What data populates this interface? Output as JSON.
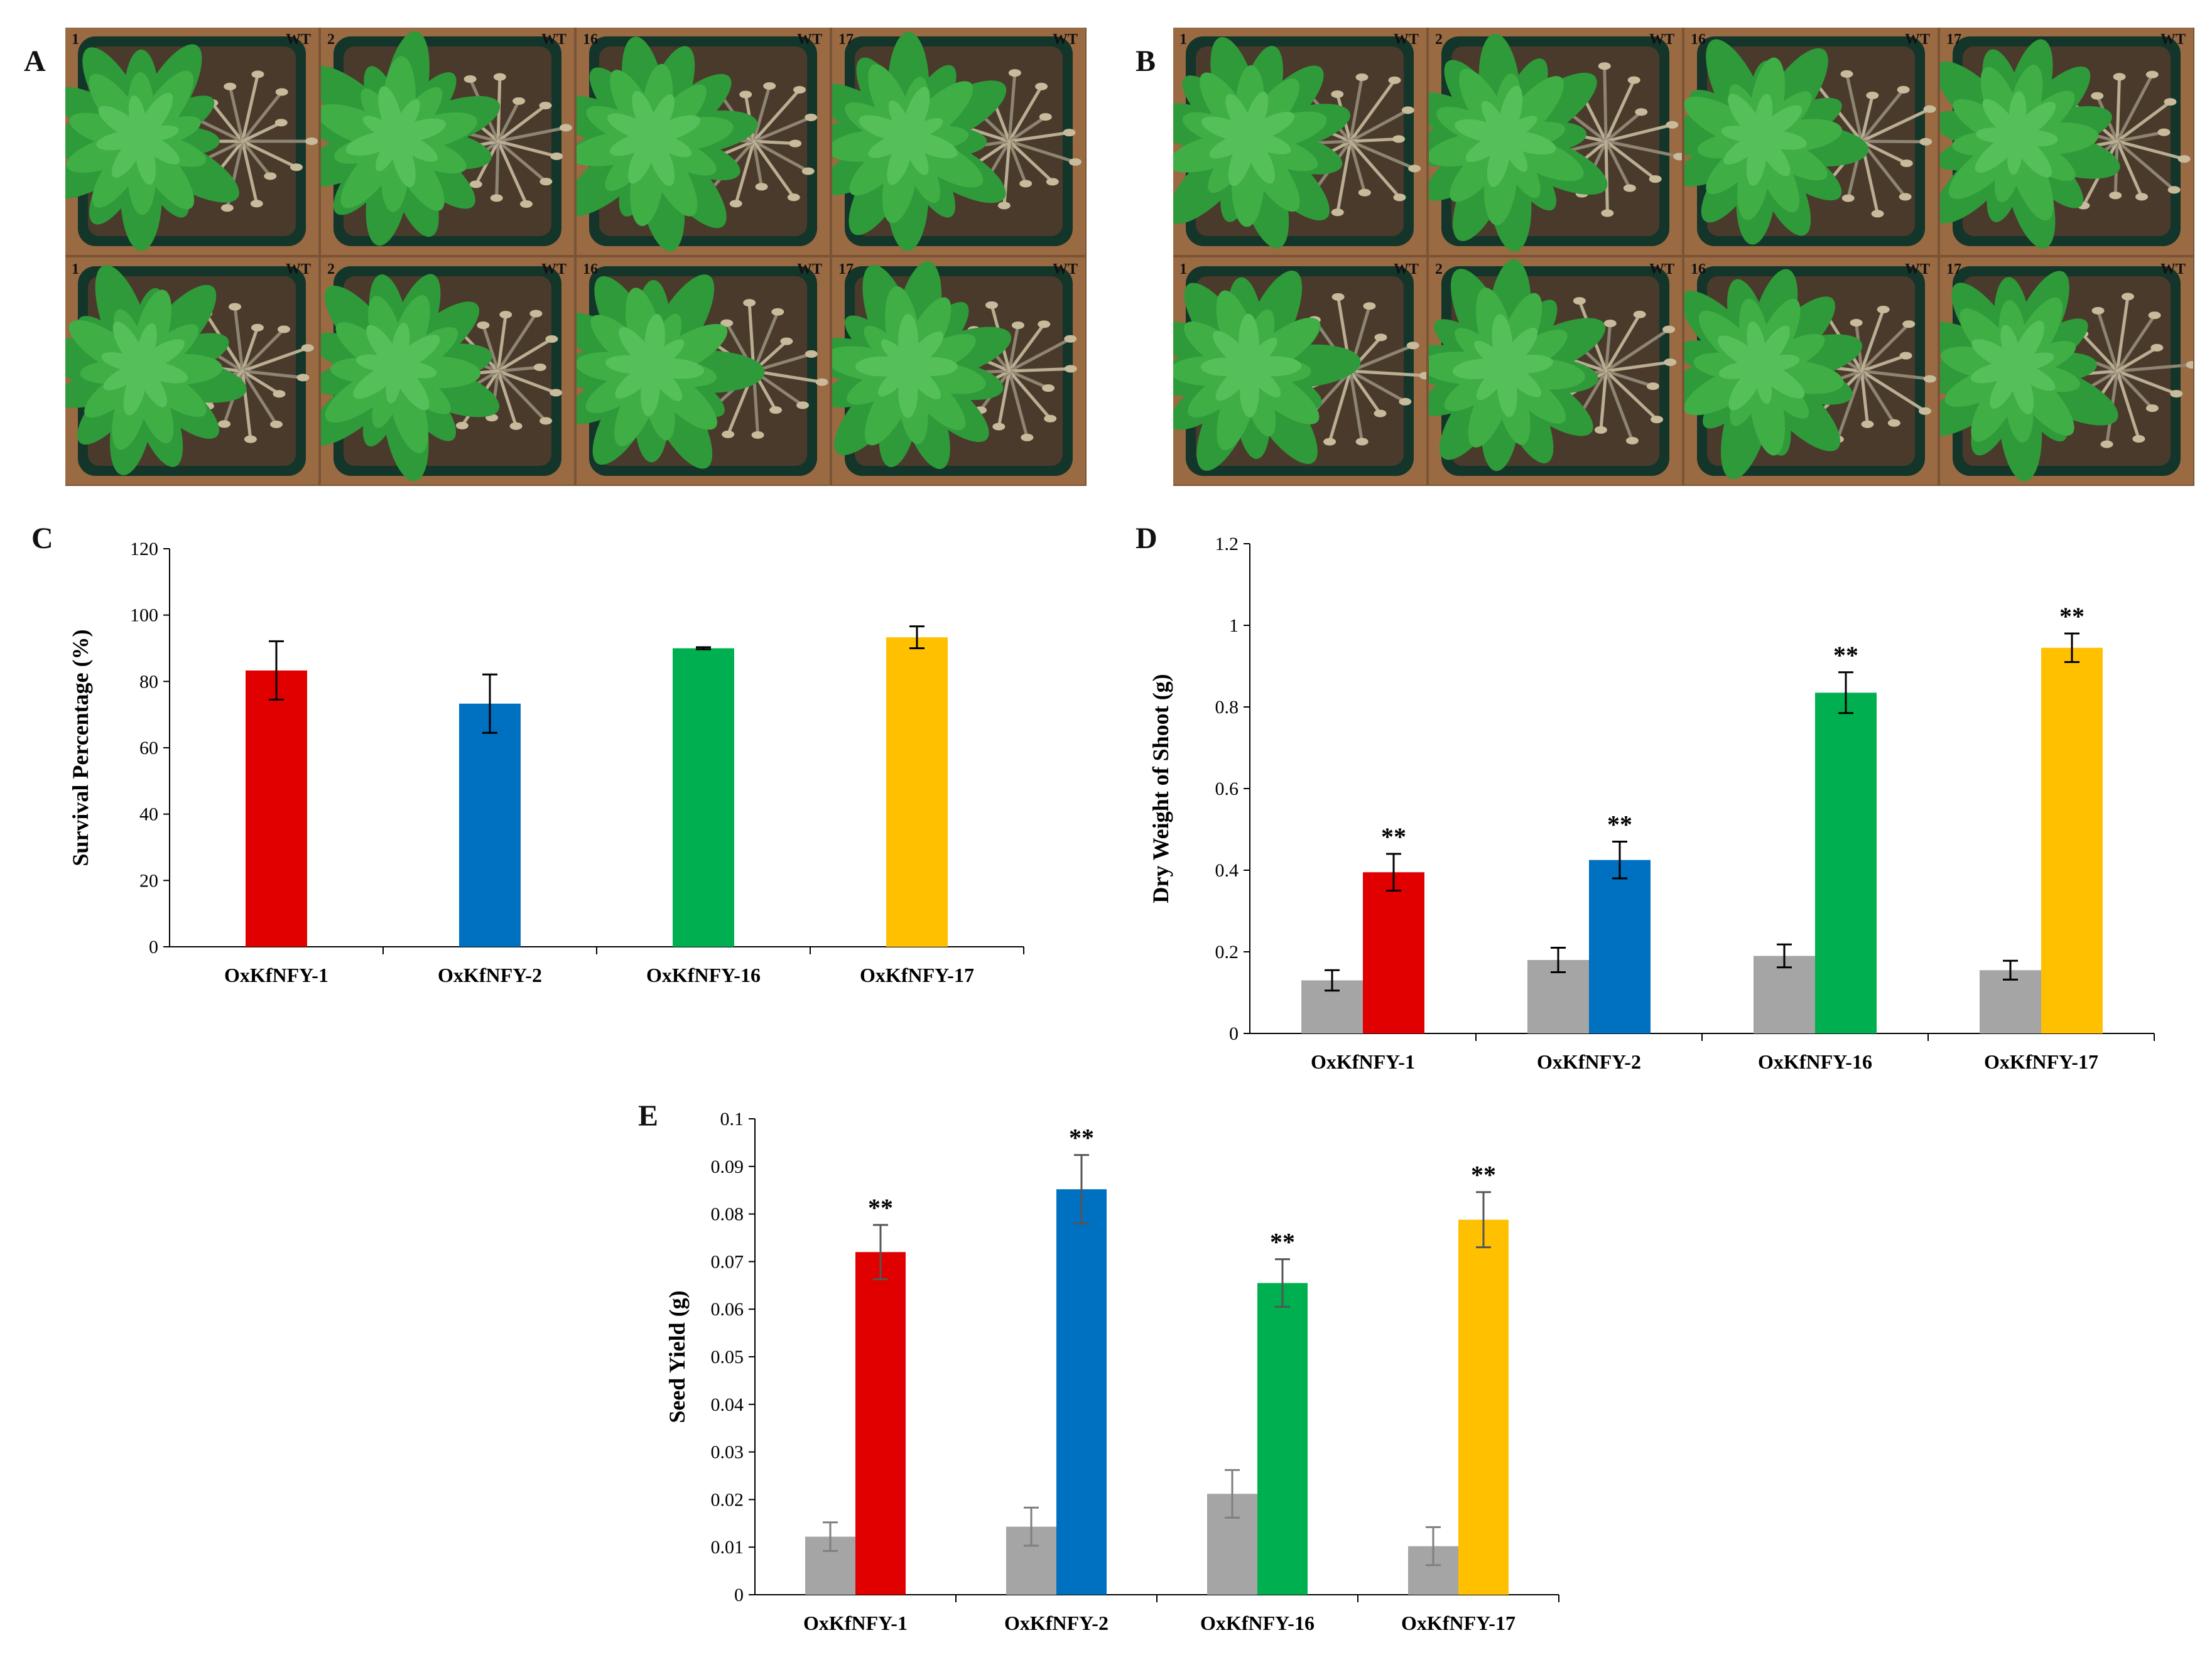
{
  "panels": {
    "A": "A",
    "B": "B",
    "C": "C",
    "D": "D",
    "E": "E"
  },
  "photo_grids": [
    {
      "id": "A",
      "cells": [
        {
          "line": "1",
          "wt": "WT"
        },
        {
          "line": "2",
          "wt": "WT"
        },
        {
          "line": "16",
          "wt": "WT"
        },
        {
          "line": "17",
          "wt": "WT"
        },
        {
          "line": "1",
          "wt": "WT"
        },
        {
          "line": "2",
          "wt": "WT"
        },
        {
          "line": "16",
          "wt": "WT"
        },
        {
          "line": "17",
          "wt": "WT"
        }
      ]
    },
    {
      "id": "B",
      "cells": [
        {
          "line": "1",
          "wt": "WT"
        },
        {
          "line": "2",
          "wt": "WT"
        },
        {
          "line": "16",
          "wt": "WT"
        },
        {
          "line": "17",
          "wt": "WT"
        },
        {
          "line": "1",
          "wt": "WT"
        },
        {
          "line": "2",
          "wt": "WT"
        },
        {
          "line": "16",
          "wt": "WT"
        },
        {
          "line": "17",
          "wt": "WT"
        }
      ]
    }
  ],
  "colors": {
    "wt_bar": "#a5a5a5",
    "line1": "#e00000",
    "line2": "#0070c0",
    "line16": "#00b050",
    "line17": "#ffc000"
  },
  "chart_data": [
    {
      "id": "C",
      "type": "bar",
      "categories": [
        "OxKfNFY-1",
        "OxKfNFY-2",
        "OxKfNFY-16",
        "OxKfNFY-17"
      ],
      "series": [
        {
          "name": "OxKfNFY",
          "values": [
            83.3,
            73.3,
            90.0,
            93.3
          ],
          "errors": [
            8.8,
            8.8,
            0.3,
            3.3
          ]
        }
      ],
      "significance": [
        "",
        "",
        "",
        ""
      ],
      "ylabel": "Survival Percentage (%)",
      "ylim": [
        0,
        120
      ],
      "yticks": [
        "0",
        "20",
        "40",
        "60",
        "80",
        "100",
        "120"
      ]
    },
    {
      "id": "D",
      "type": "bar",
      "categories": [
        "OxKfNFY-1",
        "OxKfNFY-2",
        "OxKfNFY-16",
        "OxKfNFY-17"
      ],
      "series": [
        {
          "name": "WT",
          "values": [
            0.13,
            0.18,
            0.19,
            0.155
          ],
          "errors": [
            0.025,
            0.03,
            0.028,
            0.023
          ]
        },
        {
          "name": "OxKfNFY",
          "values": [
            0.395,
            0.425,
            0.835,
            0.945
          ],
          "errors": [
            0.045,
            0.045,
            0.05,
            0.035
          ]
        }
      ],
      "significance": [
        "**",
        "**",
        "**",
        "**"
      ],
      "ylabel": "Dry Weight of Shoot (g)",
      "ylim": [
        0,
        1.2
      ],
      "yticks": [
        "0",
        "0.2",
        "0.4",
        "0.6",
        "0.8",
        "1",
        "1.2"
      ]
    },
    {
      "id": "E",
      "type": "bar",
      "categories": [
        "OxKfNFY-1",
        "OxKfNFY-2",
        "OxKfNFY-16",
        "OxKfNFY-17"
      ],
      "series": [
        {
          "name": "WT",
          "values": [
            0.0122,
            0.0143,
            0.0212,
            0.0102
          ],
          "errors": [
            0.003,
            0.004,
            0.005,
            0.004
          ]
        },
        {
          "name": "OxKfNFY",
          "values": [
            0.072,
            0.0852,
            0.0655,
            0.0788
          ],
          "errors": [
            0.0057,
            0.0072,
            0.005,
            0.0058
          ]
        }
      ],
      "significance": [
        "**",
        "**",
        "**",
        "**"
      ],
      "ylabel": "Seed Yield (g)",
      "ylim": [
        0,
        0.1
      ],
      "yticks": [
        "0",
        "0.01",
        "0.02",
        "0.03",
        "0.04",
        "0.05",
        "0.06",
        "0.07",
        "0.08",
        "0.09",
        "0.1"
      ]
    }
  ]
}
